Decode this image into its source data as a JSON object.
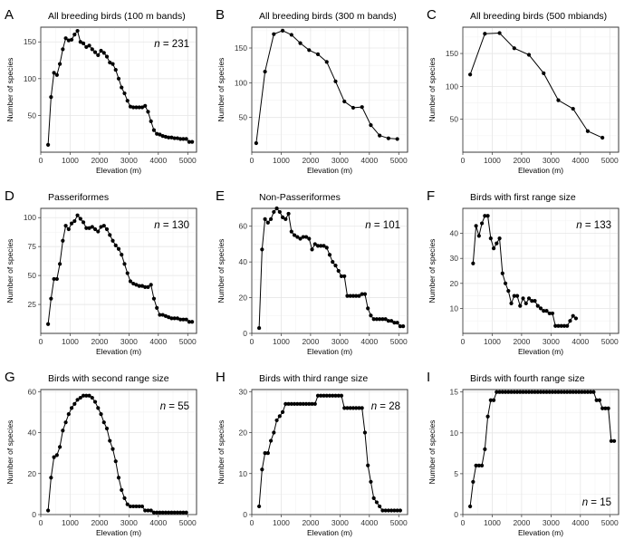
{
  "chart_data": [
    {
      "panel": "A",
      "type": "line",
      "title": "All breeding birds (100 m bands)",
      "xlabel": "Elevation (m)",
      "ylabel": "Number of species",
      "xlim": [
        0,
        5300
      ],
      "ylim": [
        0,
        170
      ],
      "xticks": [
        0,
        1000,
        2000,
        3000,
        4000,
        5000
      ],
      "yticks": [
        50,
        100,
        150
      ],
      "grid": true,
      "n_label": "231",
      "n_pos": "top-right",
      "x": [
        250,
        350,
        450,
        550,
        650,
        750,
        850,
        950,
        1050,
        1150,
        1250,
        1350,
        1450,
        1550,
        1650,
        1750,
        1850,
        1950,
        2050,
        2150,
        2250,
        2350,
        2450,
        2550,
        2650,
        2750,
        2850,
        2950,
        3050,
        3150,
        3250,
        3350,
        3450,
        3550,
        3650,
        3750,
        3850,
        3950,
        4050,
        4150,
        4250,
        4350,
        4450,
        4550,
        4650,
        4750,
        4850,
        4950,
        5050,
        5150
      ],
      "y": [
        10,
        75,
        108,
        105,
        120,
        140,
        155,
        152,
        153,
        160,
        165,
        150,
        148,
        143,
        145,
        140,
        136,
        132,
        138,
        135,
        130,
        122,
        120,
        112,
        100,
        88,
        80,
        70,
        62,
        61,
        61,
        61,
        61,
        63,
        55,
        42,
        30,
        25,
        24,
        22,
        21,
        20,
        20,
        19,
        19,
        18,
        18,
        18,
        14,
        14
      ]
    },
    {
      "panel": "B",
      "type": "line",
      "title": "All breeding birds (300 m bands)",
      "xlabel": "Elevation (m)",
      "ylabel": "Number of species",
      "xlim": [
        0,
        5300
      ],
      "ylim": [
        0,
        180
      ],
      "xticks": [
        0,
        1000,
        2000,
        3000,
        4000,
        5000
      ],
      "yticks": [
        50,
        100,
        150
      ],
      "grid": true,
      "x": [
        150,
        450,
        750,
        1050,
        1350,
        1650,
        1950,
        2250,
        2550,
        2850,
        3150,
        3450,
        3750,
        4050,
        4350,
        4650,
        4950
      ],
      "y": [
        13,
        116,
        170,
        175,
        169,
        157,
        147,
        141,
        130,
        102,
        73,
        64,
        65,
        39,
        24,
        20,
        19
      ]
    },
    {
      "panel": "C",
      "type": "line",
      "title": "All breeding birds (500 mbiands)",
      "xlabel": "Elevation (m)",
      "ylabel": "Number of species",
      "xlim": [
        0,
        5300
      ],
      "ylim": [
        0,
        190
      ],
      "xticks": [
        0,
        1000,
        2000,
        3000,
        4000,
        5000
      ],
      "yticks": [
        50,
        100,
        150
      ],
      "grid": true,
      "x": [
        250,
        750,
        1250,
        1750,
        2250,
        2750,
        3250,
        3750,
        4250,
        4750
      ],
      "y": [
        118,
        180,
        181,
        158,
        148,
        120,
        79,
        66,
        32,
        22
      ]
    },
    {
      "panel": "D",
      "type": "line",
      "title": "Passeriformes",
      "xlabel": "Elevation (m)",
      "ylabel": "Number of species",
      "xlim": [
        0,
        5300
      ],
      "ylim": [
        0,
        108
      ],
      "xticks": [
        0,
        1000,
        2000,
        3000,
        4000,
        5000
      ],
      "yticks": [
        25,
        50,
        75,
        100
      ],
      "grid": true,
      "n_label": "130",
      "n_pos": "top-right",
      "x": [
        250,
        350,
        450,
        550,
        650,
        750,
        850,
        950,
        1050,
        1150,
        1250,
        1350,
        1450,
        1550,
        1650,
        1750,
        1850,
        1950,
        2050,
        2150,
        2250,
        2350,
        2450,
        2550,
        2650,
        2750,
        2850,
        2950,
        3050,
        3150,
        3250,
        3350,
        3450,
        3550,
        3650,
        3750,
        3850,
        3950,
        4050,
        4150,
        4250,
        4350,
        4450,
        4550,
        4650,
        4750,
        4850,
        4950,
        5050,
        5150
      ],
      "y": [
        8,
        30,
        47,
        47,
        60,
        80,
        93,
        90,
        95,
        97,
        102,
        99,
        96,
        91,
        91,
        92,
        90,
        88,
        92,
        93,
        90,
        85,
        80,
        76,
        73,
        68,
        60,
        52,
        45,
        43,
        42,
        41,
        41,
        40,
        40,
        42,
        30,
        22,
        16,
        16,
        15,
        14,
        13,
        13,
        13,
        12,
        12,
        12,
        10,
        10
      ]
    },
    {
      "panel": "E",
      "type": "line",
      "title": "Non-Passeriformes",
      "xlabel": "Elevation (m)",
      "ylabel": "Number of species",
      "xlim": [
        0,
        5300
      ],
      "ylim": [
        0,
        70
      ],
      "xticks": [
        0,
        1000,
        2000,
        3000,
        4000,
        5000
      ],
      "yticks": [
        0,
        20,
        40,
        60
      ],
      "grid": true,
      "n_label": "101",
      "n_pos": "top-right",
      "x": [
        250,
        350,
        450,
        550,
        650,
        750,
        850,
        950,
        1050,
        1150,
        1250,
        1350,
        1450,
        1550,
        1650,
        1750,
        1850,
        1950,
        2050,
        2150,
        2250,
        2350,
        2450,
        2550,
        2650,
        2750,
        2850,
        2950,
        3050,
        3150,
        3250,
        3350,
        3450,
        3550,
        3650,
        3750,
        3850,
        3950,
        4050,
        4150,
        4250,
        4350,
        4450,
        4550,
        4650,
        4750,
        4850,
        4950,
        5050,
        5150
      ],
      "y": [
        3,
        47,
        64,
        62,
        64,
        68,
        70,
        68,
        65,
        64,
        67,
        57,
        55,
        54,
        53,
        54,
        54,
        53,
        47,
        50,
        49,
        49,
        49,
        48,
        44,
        40,
        38,
        35,
        32,
        32,
        21,
        21,
        21,
        21,
        21,
        22,
        22,
        14,
        10,
        8,
        8,
        8,
        8,
        8,
        7,
        7,
        6,
        6,
        4,
        4
      ]
    },
    {
      "panel": "F",
      "type": "line",
      "title": "Birds with first range size",
      "xlabel": "Elevation (m)",
      "ylabel": "Number of species",
      "xlim": [
        0,
        5300
      ],
      "ylim": [
        0,
        50
      ],
      "xticks": [
        0,
        1000,
        2000,
        3000,
        4000,
        5000
      ],
      "yticks": [
        10,
        20,
        30,
        40
      ],
      "grid": true,
      "n_label": "133",
      "n_pos": "top-right",
      "x": [
        350,
        450,
        550,
        650,
        750,
        850,
        950,
        1050,
        1150,
        1250,
        1350,
        1450,
        1550,
        1650,
        1750,
        1850,
        1950,
        2050,
        2150,
        2250,
        2350,
        2450,
        2550,
        2650,
        2750,
        2850,
        2950,
        3050,
        3150,
        3250,
        3350,
        3450,
        3550,
        3650,
        3750,
        3850
      ],
      "y": [
        28,
        43,
        39,
        44,
        47,
        47,
        38,
        34,
        36,
        38,
        24,
        20,
        17,
        12,
        15,
        15,
        11,
        14,
        12,
        14,
        13,
        13,
        11,
        10,
        9,
        9,
        8,
        8,
        3,
        3,
        3,
        3,
        3,
        5,
        7,
        6
      ]
    },
    {
      "panel": "G",
      "type": "line",
      "title": "Birds with second range size",
      "xlabel": "Elevation (m)",
      "ylabel": "Number of species",
      "xlim": [
        0,
        5300
      ],
      "ylim": [
        0,
        61
      ],
      "xticks": [
        0,
        1000,
        2000,
        3000,
        4000,
        5000
      ],
      "yticks": [
        0,
        20,
        40,
        60
      ],
      "grid": true,
      "n_label": "55",
      "n_pos": "top-right",
      "x": [
        250,
        350,
        450,
        550,
        650,
        750,
        850,
        950,
        1050,
        1150,
        1250,
        1350,
        1450,
        1550,
        1650,
        1750,
        1850,
        1950,
        2050,
        2150,
        2250,
        2350,
        2450,
        2550,
        2650,
        2750,
        2850,
        2950,
        3050,
        3150,
        3250,
        3350,
        3450,
        3550,
        3650,
        3750,
        3850,
        3950,
        4050,
        4150,
        4250,
        4350,
        4450,
        4550,
        4650,
        4750,
        4850,
        4950
      ],
      "y": [
        2,
        18,
        28,
        29,
        33,
        41,
        45,
        49,
        52,
        54,
        56,
        57,
        58,
        58,
        58,
        57,
        55,
        52,
        49,
        45,
        42,
        36,
        32,
        26,
        18,
        12,
        8,
        5,
        4,
        4,
        4,
        4,
        4,
        2,
        2,
        2,
        1,
        1,
        1,
        1,
        1,
        1,
        1,
        1,
        1,
        1,
        1,
        1
      ]
    },
    {
      "panel": "H",
      "type": "line",
      "title": "Birds with third range size",
      "xlabel": "Elevation (m)",
      "ylabel": "Number of species",
      "xlim": [
        0,
        5300
      ],
      "ylim": [
        0,
        30.5
      ],
      "xticks": [
        0,
        1000,
        2000,
        3000,
        4000,
        5000
      ],
      "yticks": [
        0,
        10,
        20,
        30
      ],
      "grid": true,
      "n_label": "28",
      "n_pos": "top-right",
      "x": [
        250,
        350,
        450,
        550,
        650,
        750,
        850,
        950,
        1050,
        1150,
        1250,
        1350,
        1450,
        1550,
        1650,
        1750,
        1850,
        1950,
        2050,
        2150,
        2250,
        2350,
        2450,
        2550,
        2650,
        2750,
        2850,
        2950,
        3050,
        3150,
        3250,
        3350,
        3450,
        3550,
        3650,
        3750,
        3850,
        3950,
        4050,
        4150,
        4250,
        4350,
        4450,
        4550,
        4650,
        4750,
        4850,
        4950,
        5050
      ],
      "y": [
        2,
        11,
        15,
        15,
        18,
        20,
        23,
        24,
        25,
        27,
        27,
        27,
        27,
        27,
        27,
        27,
        27,
        27,
        27,
        27,
        29,
        29,
        29,
        29,
        29,
        29,
        29,
        29,
        29,
        26,
        26,
        26,
        26,
        26,
        26,
        26,
        20,
        12,
        8,
        4,
        3,
        2,
        1,
        1,
        1,
        1,
        1,
        1,
        1
      ]
    },
    {
      "panel": "I",
      "type": "line",
      "title": "Birds with fourth range size",
      "xlabel": "Elevation (m)",
      "ylabel": "Number of species",
      "xlim": [
        0,
        5300
      ],
      "ylim": [
        0,
        15.3
      ],
      "xticks": [
        0,
        1000,
        2000,
        3000,
        4000,
        5000
      ],
      "yticks": [
        0,
        5,
        10,
        15
      ],
      "grid": true,
      "n_label": "15",
      "n_pos": "bottom-right",
      "x": [
        250,
        350,
        450,
        550,
        650,
        750,
        850,
        950,
        1050,
        1150,
        1250,
        1350,
        1450,
        1550,
        1650,
        1750,
        1850,
        1950,
        2050,
        2150,
        2250,
        2350,
        2450,
        2550,
        2650,
        2750,
        2850,
        2950,
        3050,
        3150,
        3250,
        3350,
        3450,
        3550,
        3650,
        3750,
        3850,
        3950,
        4050,
        4150,
        4250,
        4350,
        4450,
        4550,
        4650,
        4750,
        4850,
        4950,
        5050,
        5150
      ],
      "y": [
        1,
        4,
        6,
        6,
        6,
        8,
        12,
        14,
        14,
        15,
        15,
        15,
        15,
        15,
        15,
        15,
        15,
        15,
        15,
        15,
        15,
        15,
        15,
        15,
        15,
        15,
        15,
        15,
        15,
        15,
        15,
        15,
        15,
        15,
        15,
        15,
        15,
        15,
        15,
        15,
        15,
        15,
        15,
        14,
        14,
        13,
        13,
        13,
        9,
        9
      ]
    }
  ]
}
